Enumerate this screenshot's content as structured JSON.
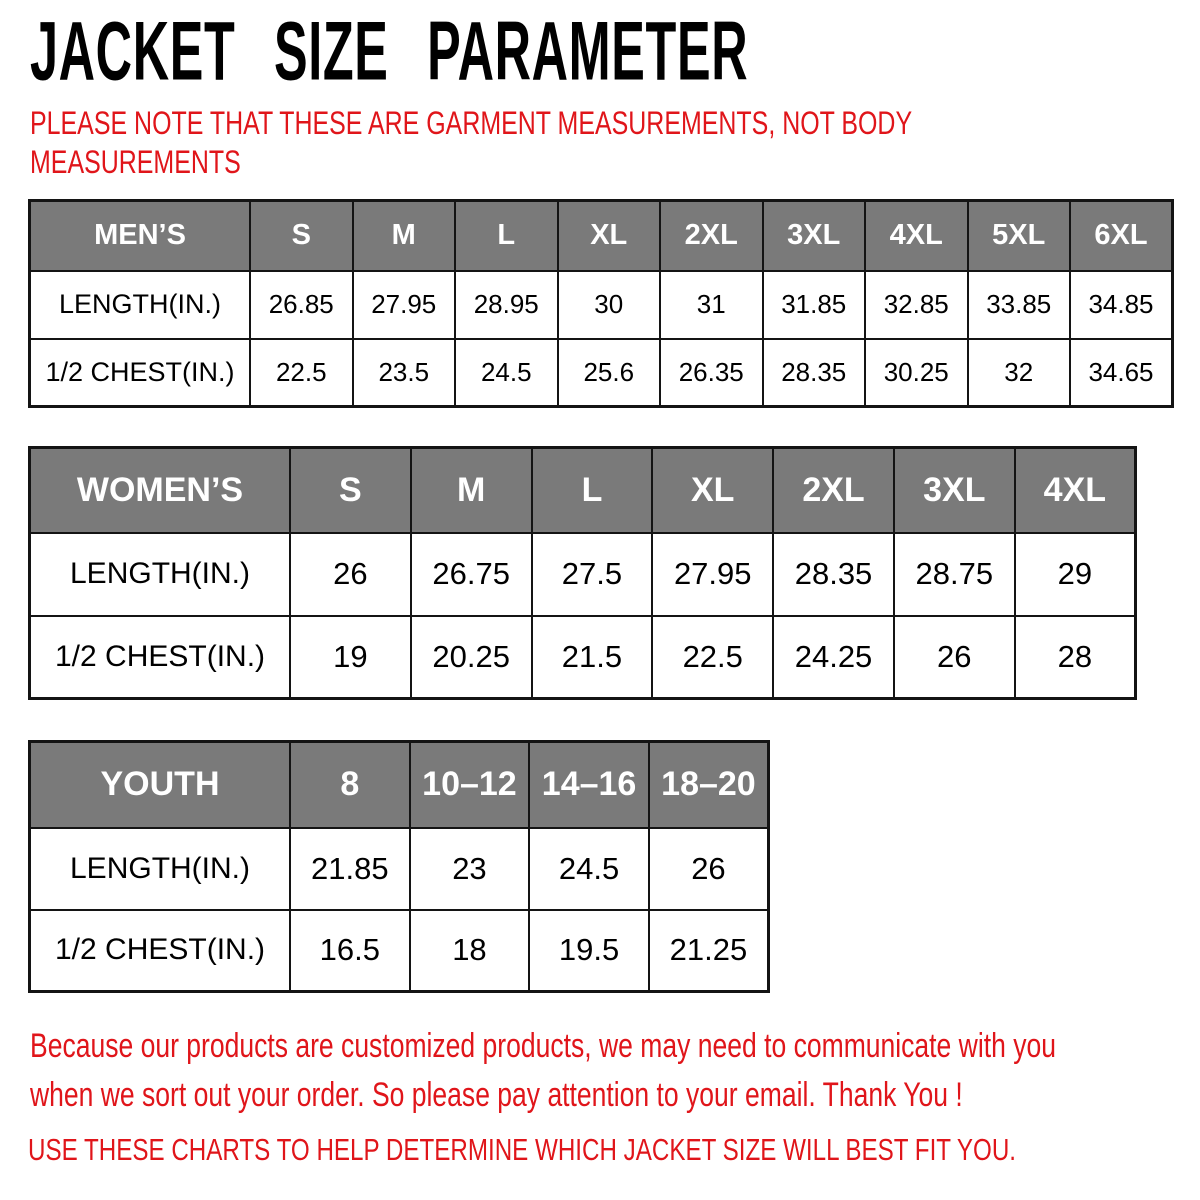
{
  "title": "JACKET SIZE PARAMETER",
  "note": {
    "line1": "PLEASE NOTE THAT THESE ARE GARMENT MEASUREMENTS, NOT BODY",
    "line2": "MEASUREMENTS"
  },
  "tables": [
    {
      "name": "mens",
      "header": [
        "MEN’S",
        "S",
        "M",
        "L",
        "XL",
        "2XL",
        "3XL",
        "4XL",
        "5XL",
        "6XL"
      ],
      "rows": [
        [
          "LENGTH(IN.)",
          "26.85",
          "27.95",
          "28.95",
          "30",
          "31",
          "31.85",
          "32.85",
          "33.85",
          "34.85"
        ],
        [
          "1/2 CHEST(IN.)",
          "22.5",
          "23.5",
          "24.5",
          "25.6",
          "26.35",
          "28.35",
          "30.25",
          "32",
          "34.65"
        ]
      ]
    },
    {
      "name": "womens",
      "header": [
        "WOMEN’S",
        "S",
        "M",
        "L",
        "XL",
        "2XL",
        "3XL",
        "4XL"
      ],
      "rows": [
        [
          "LENGTH(IN.)",
          "26",
          "26.75",
          "27.5",
          "27.95",
          "28.35",
          "28.75",
          "29"
        ],
        [
          "1/2 CHEST(IN.)",
          "19",
          "20.25",
          "21.5",
          "22.5",
          "24.25",
          "26",
          "28"
        ]
      ]
    },
    {
      "name": "youth",
      "header": [
        "YOUTH",
        "8",
        "10–12",
        "14–16",
        "18–20"
      ],
      "rows": [
        [
          "LENGTH(IN.)",
          "21.85",
          "23",
          "24.5",
          "26"
        ],
        [
          "1/2 CHEST(IN.)",
          "16.5",
          "18",
          "19.5",
          "21.25"
        ]
      ]
    }
  ],
  "footer": {
    "notice_line1": "Because our products are customized products, we may need to communicate with you",
    "notice_line2": "when we sort out your order. So please pay attention to your email. Thank You !",
    "advice": "USE THESE CHARTS TO HELP DETERMINE WHICH JACKET SIZE WILL BEST FIT YOU."
  },
  "colors": {
    "accent_red": "#e0151a",
    "header_gray": "#7a7a7a",
    "header_text": "#ffffff",
    "border_black": "#141414"
  }
}
